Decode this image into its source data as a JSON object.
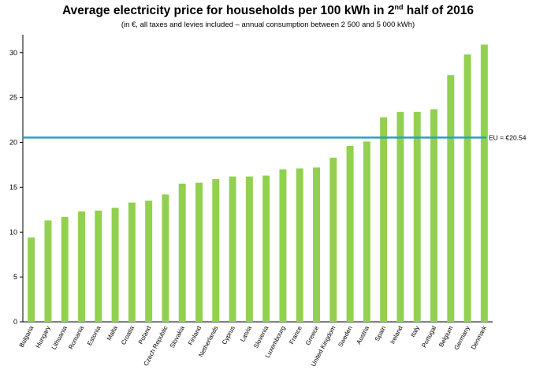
{
  "chart_data": {
    "type": "bar",
    "title_main": "Average electricity price for households per 100 kWh in 2",
    "title_sup": "nd",
    "title_end": " half of 2016",
    "subtitle": "(in €, all taxes and levies included – annual consumption between 2 500 and 5 000 kWh)",
    "categories": [
      "Bulgaria",
      "Hungary",
      "Lithuania",
      "Romania",
      "Estonia",
      "Malta",
      "Croatia",
      "Poland",
      "Czech Republic",
      "Slovakia",
      "Finland",
      "Netherlands",
      "Cyprus",
      "Latvia",
      "Slovenia",
      "Luxembourg",
      "France",
      "Greece",
      "United Kingdom",
      "Sweden",
      "Austria",
      "Spain",
      "Ireland",
      "Italy",
      "Portugal",
      "Belgium",
      "Germany",
      "Denmark"
    ],
    "values": [
      9.4,
      11.3,
      11.7,
      12.3,
      12.4,
      12.7,
      13.3,
      13.5,
      14.2,
      15.4,
      15.5,
      15.9,
      16.2,
      16.2,
      16.3,
      17.0,
      17.1,
      17.2,
      18.3,
      19.6,
      20.1,
      22.8,
      23.4,
      23.4,
      23.7,
      27.5,
      29.8,
      30.9
    ],
    "ylim": [
      0,
      32
    ],
    "yticks": [
      "0",
      "5",
      "10",
      "15",
      "20",
      "25",
      "30"
    ],
    "reference_value": 20.54,
    "reference_label": "EU = €20.54",
    "bar_color": "#92d050",
    "reference_color": "#2aa0c4",
    "xlabel": "",
    "ylabel": ""
  }
}
